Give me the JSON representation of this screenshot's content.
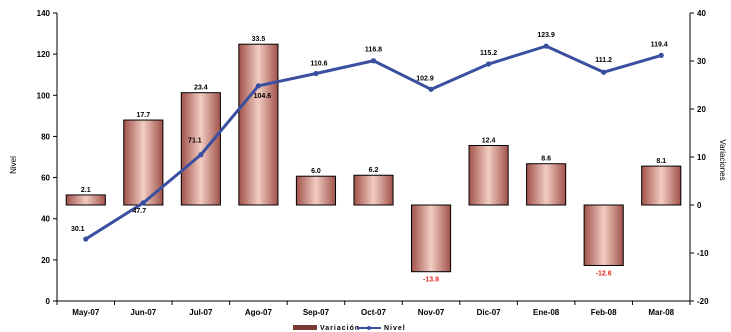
{
  "chart_data": {
    "type": "bar",
    "categories": [
      "May-07",
      "Jun-07",
      "Jul-07",
      "Ago-07",
      "Sep-07",
      "Oct-07",
      "Nov-07",
      "Dic-07",
      "Ene-08",
      "Feb-08",
      "Mar-08"
    ],
    "series": [
      {
        "name": "Variación",
        "type": "bar",
        "axis": "right",
        "values": [
          2.1,
          17.7,
          23.4,
          33.5,
          6.0,
          6.2,
          -13.9,
          12.4,
          8.6,
          -12.6,
          8.1
        ],
        "labels": [
          "2.1",
          "17.7",
          "23.4",
          "33.5",
          "6.0",
          "6.2",
          "-13.9",
          "12.4",
          "8.6",
          "-12.6",
          "8.1"
        ],
        "color": "#a0524a",
        "highlight_color": "#f2cdc3"
      },
      {
        "name": "Nivel",
        "type": "line",
        "axis": "left",
        "values": [
          30.1,
          47.7,
          71.1,
          104.6,
          110.6,
          116.8,
          102.9,
          115.2,
          123.9,
          111.2,
          119.4
        ],
        "labels": [
          "30.1",
          "47.7",
          "71.1",
          "104.6",
          "110.6",
          "116.8",
          "102.9",
          "115.2",
          "123.9",
          "111.2",
          "119.4"
        ],
        "color": "#3b4fa0"
      }
    ],
    "ylabel": "Nivel",
    "y2label": "Variaciones",
    "ylim": [
      0,
      140
    ],
    "y2lim": [
      -20,
      40
    ],
    "yticks": [
      "0",
      "20",
      "40",
      "60",
      "80",
      "100",
      "120",
      "140"
    ],
    "y2ticks": [
      "-20",
      "-10",
      "0",
      "10",
      "20",
      "30",
      "40"
    ],
    "negative_label_color": "#e8291c",
    "grid": false,
    "legend_position": "bottom"
  }
}
